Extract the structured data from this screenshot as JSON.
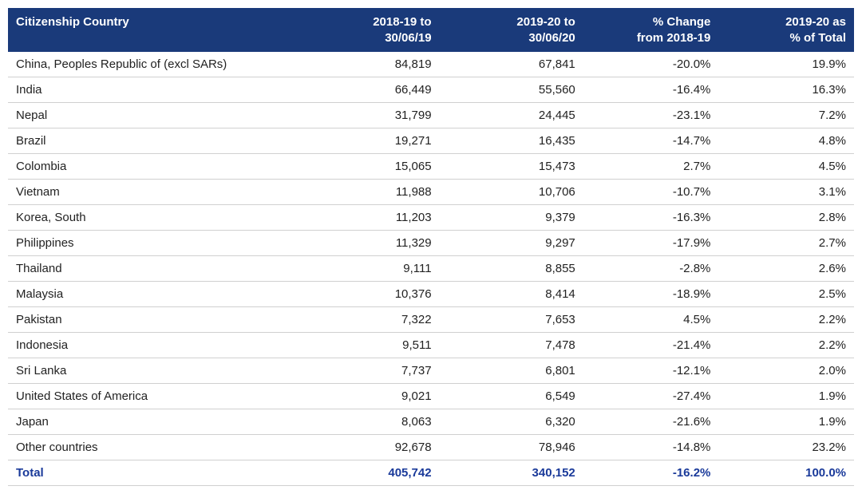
{
  "table": {
    "header_bg": "#1a3a7a",
    "header_color": "#ffffff",
    "row_border_color": "#d0d0d0",
    "text_color": "#222222",
    "total_color": "#1a3a9a",
    "font_size": 15,
    "columns": [
      {
        "label_line1": "Citizenship Country",
        "label_line2": "",
        "align": "left",
        "width": "34%"
      },
      {
        "label_line1": "2018-19 to",
        "label_line2": "30/06/19",
        "align": "right",
        "width": "17%"
      },
      {
        "label_line1": "2019-20 to",
        "label_line2": "30/06/20",
        "align": "right",
        "width": "17%"
      },
      {
        "label_line1": "% Change",
        "label_line2": "from 2018-19",
        "align": "right",
        "width": "16%"
      },
      {
        "label_line1": "2019-20 as",
        "label_line2": "% of Total",
        "align": "right",
        "width": "16%"
      }
    ],
    "rows": [
      {
        "country": "China, Peoples Republic of (excl SARs)",
        "v1819": "84,819",
        "v1920": "67,841",
        "change": "-20.0%",
        "pct": "19.9%"
      },
      {
        "country": "India",
        "v1819": "66,449",
        "v1920": "55,560",
        "change": "-16.4%",
        "pct": "16.3%"
      },
      {
        "country": "Nepal",
        "v1819": "31,799",
        "v1920": "24,445",
        "change": "-23.1%",
        "pct": "7.2%"
      },
      {
        "country": "Brazil",
        "v1819": "19,271",
        "v1920": "16,435",
        "change": "-14.7%",
        "pct": "4.8%"
      },
      {
        "country": "Colombia",
        "v1819": "15,065",
        "v1920": "15,473",
        "change": "2.7%",
        "pct": "4.5%"
      },
      {
        "country": "Vietnam",
        "v1819": "11,988",
        "v1920": "10,706",
        "change": "-10.7%",
        "pct": "3.1%"
      },
      {
        "country": "Korea, South",
        "v1819": "11,203",
        "v1920": "9,379",
        "change": "-16.3%",
        "pct": "2.8%"
      },
      {
        "country": "Philippines",
        "v1819": "11,329",
        "v1920": "9,297",
        "change": "-17.9%",
        "pct": "2.7%"
      },
      {
        "country": "Thailand",
        "v1819": "9,111",
        "v1920": "8,855",
        "change": "-2.8%",
        "pct": "2.6%"
      },
      {
        "country": "Malaysia",
        "v1819": "10,376",
        "v1920": "8,414",
        "change": "-18.9%",
        "pct": "2.5%"
      },
      {
        "country": "Pakistan",
        "v1819": "7,322",
        "v1920": "7,653",
        "change": "4.5%",
        "pct": "2.2%"
      },
      {
        "country": "Indonesia",
        "v1819": "9,511",
        "v1920": "7,478",
        "change": "-21.4%",
        "pct": "2.2%"
      },
      {
        "country": "Sri Lanka",
        "v1819": "7,737",
        "v1920": "6,801",
        "change": "-12.1%",
        "pct": "2.0%"
      },
      {
        "country": "United States of America",
        "v1819": "9,021",
        "v1920": "6,549",
        "change": "-27.4%",
        "pct": "1.9%"
      },
      {
        "country": "Japan",
        "v1819": "8,063",
        "v1920": "6,320",
        "change": "-21.6%",
        "pct": "1.9%"
      },
      {
        "country": "Other countries",
        "v1819": "92,678",
        "v1920": "78,946",
        "change": "-14.8%",
        "pct": "23.2%"
      }
    ],
    "total": {
      "country": "Total",
      "v1819": "405,742",
      "v1920": "340,152",
      "change": "-16.2%",
      "pct": "100.0%"
    }
  }
}
